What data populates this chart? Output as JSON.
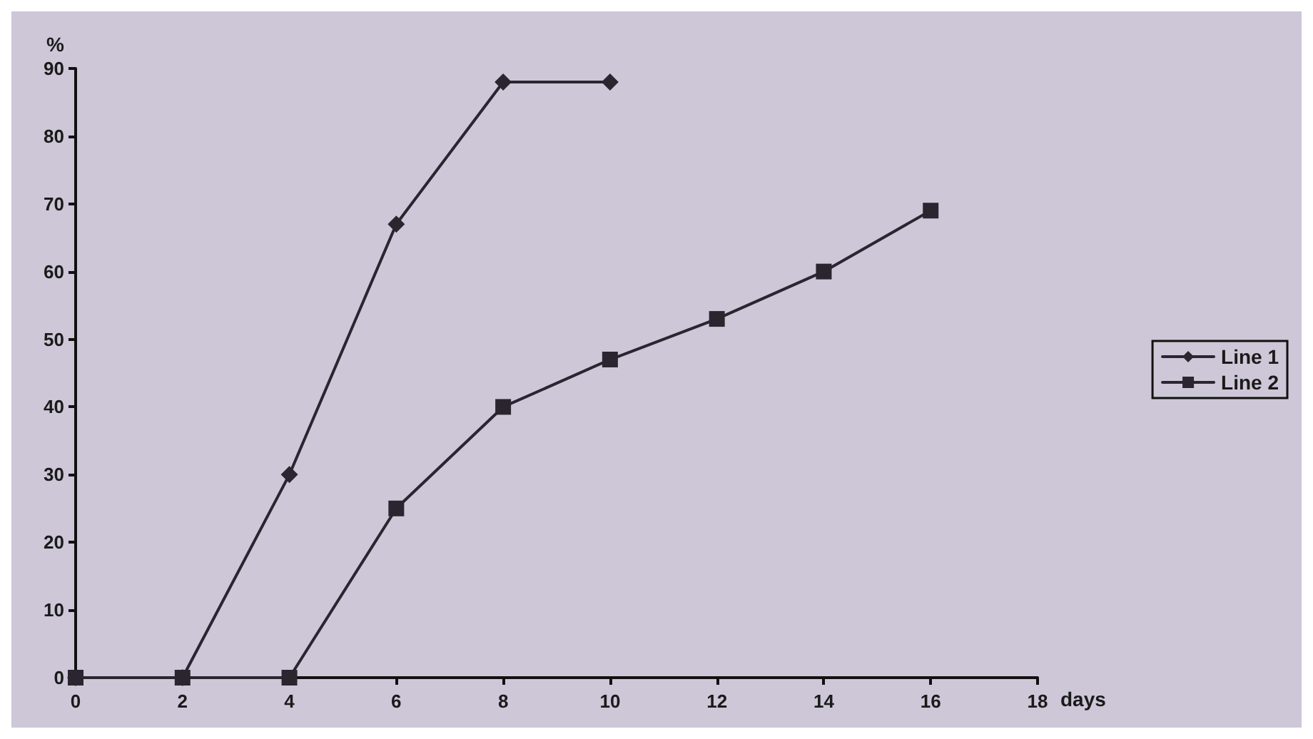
{
  "chart_data": {
    "type": "line",
    "xlabel": "days",
    "ylabel": "%",
    "xlim": [
      0,
      18
    ],
    "xticks": [
      0,
      2,
      4,
      6,
      8,
      10,
      12,
      14,
      16,
      18
    ],
    "ylim": [
      0,
      90
    ],
    "yticks": [
      0,
      10,
      20,
      30,
      40,
      50,
      60,
      70,
      80,
      90
    ],
    "grid": false,
    "legend": "right",
    "line_style": "solid",
    "series": [
      {
        "name": "Line 1",
        "color": "#2b2530",
        "marker": "diamond",
        "x": [
          0,
          2,
          4,
          6,
          8,
          10
        ],
        "values": [
          0,
          0,
          30,
          67,
          88,
          88
        ]
      },
      {
        "name": "Line 2",
        "color": "#2b2530",
        "marker": "square",
        "x": [
          0,
          2,
          4,
          6,
          8,
          10,
          12,
          14,
          16
        ],
        "values": [
          0,
          0,
          0,
          25,
          40,
          47,
          53,
          60,
          69
        ]
      }
    ]
  }
}
